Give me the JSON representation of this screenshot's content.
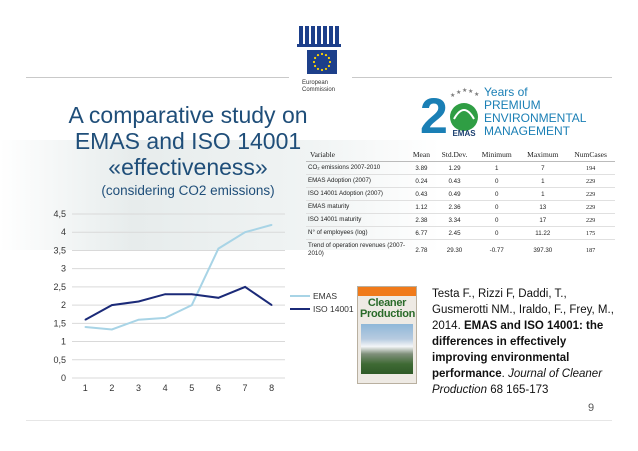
{
  "slide": {
    "title_lines": [
      "A comparative study on",
      "EMAS and ISO 14001",
      "«effectiveness»"
    ],
    "subtitle": "(considering CO2 emissions)",
    "page_number": "9"
  },
  "header": {
    "ec_name_lines": [
      "European",
      "Commission"
    ],
    "emas_badge": {
      "digit": "2",
      "lines": [
        "Years of",
        "PREMIUM",
        "ENVIRONMENTAL",
        "MANAGEMENT"
      ],
      "badge_label": "EMAS",
      "accent_color": "#1a7fb5",
      "green_color": "#2f9e44"
    }
  },
  "stats_table": {
    "headers": [
      "Variable",
      "Mean",
      "Std.Dev.",
      "Minimum",
      "Maximum",
      "NumCases"
    ],
    "rows": [
      {
        "variable": "CO₂ emissions 2007-2010",
        "mean": "3.89",
        "sd": "1.29",
        "min": "1",
        "max": "7",
        "n": "194"
      },
      {
        "variable": "EMAS Adoption (2007)",
        "mean": "0.24",
        "sd": "0.43",
        "min": "0",
        "max": "1",
        "n": "229"
      },
      {
        "variable": "ISO 14001 Adoption (2007)",
        "mean": "0.43",
        "sd": "0.49",
        "min": "0",
        "max": "1",
        "n": "229"
      },
      {
        "variable": "EMAS maturity",
        "mean": "1.12",
        "sd": "2.36",
        "min": "0",
        "max": "13",
        "n": "229"
      },
      {
        "variable": "ISO 14001 maturity",
        "mean": "2.38",
        "sd": "3.34",
        "min": "0",
        "max": "17",
        "n": "229"
      },
      {
        "variable": "N° of employees (log)",
        "mean": "6.77",
        "sd": "2.45",
        "min": "0",
        "max": "11.22",
        "n": "175"
      },
      {
        "variable": "Trend of operation revenues (2007-2010)",
        "mean": "2.78",
        "sd": "29.30",
        "min": "-0.77",
        "max": "397.30",
        "n": "187"
      }
    ]
  },
  "chart_data": {
    "type": "line",
    "x": [
      1,
      2,
      3,
      4,
      5,
      6,
      7,
      8
    ],
    "ylim": [
      0,
      4.5
    ],
    "yticks": [
      "0",
      "0,5",
      "1",
      "1,5",
      "2",
      "2,5",
      "3",
      "3,5",
      "4",
      "4,5"
    ],
    "xticks": [
      "1",
      "2",
      "3",
      "4",
      "5",
      "6",
      "7",
      "8"
    ],
    "legend": "right",
    "grid": true,
    "series": [
      {
        "name": "EMAS",
        "color": "#a8d4e6",
        "values": [
          1.4,
          1.33,
          1.6,
          1.65,
          2.0,
          3.55,
          4.0,
          4.2
        ]
      },
      {
        "name": "ISO 14001",
        "color": "#1b2a78",
        "values": [
          1.6,
          2.0,
          2.1,
          2.3,
          2.3,
          2.2,
          2.5,
          2.0
        ]
      }
    ]
  },
  "journal_cover": {
    "title_lines": [
      "Cleaner",
      "Production"
    ]
  },
  "citation": {
    "authors": "Testa F., Rizzi F, Daddi, T., Gusmerotti NM., Iraldo, F., Frey, M., 2014.",
    "title": "EMAS and ISO 14001: the differences in effectively improving environmental performance",
    "journal": "Journal of  Cleaner Production",
    "volume_pages": "68 165-173"
  }
}
